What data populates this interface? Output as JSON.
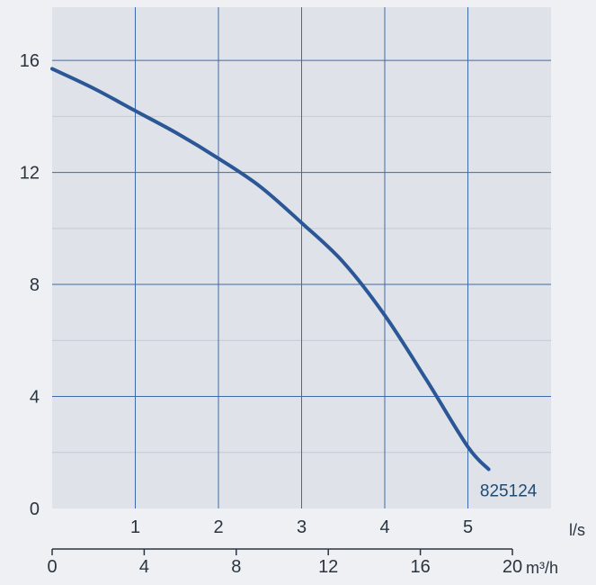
{
  "chart_data": {
    "type": "line",
    "title": "",
    "xlabel": "l/s",
    "ylabel": "",
    "x_unit_label": "l/s",
    "x2_unit_label": "m³/h",
    "xlim": [
      0,
      6
    ],
    "ylim": [
      0,
      16
    ],
    "y_ticks": [
      "0",
      "4",
      "8",
      "12",
      "16"
    ],
    "x_ticks": [
      "1",
      "2",
      "3",
      "4",
      "5"
    ],
    "x2_ticks": [
      "0",
      "4",
      "8",
      "12",
      "16",
      "20"
    ],
    "grid": true,
    "series": [
      {
        "name": "825124",
        "color": "#2b5797",
        "x": [
          0,
          0.5,
          1,
          1.5,
          2,
          2.5,
          3,
          3.5,
          4,
          4.5,
          5,
          5.25
        ],
        "y": [
          15.7,
          15.0,
          14.2,
          13.4,
          12.5,
          11.5,
          10.2,
          8.8,
          6.9,
          4.6,
          2.2,
          1.4
        ]
      }
    ],
    "colors": {
      "plot_background": "#dfe3e9",
      "gridline": "#3d6aa8",
      "minor_gridline": "#c4cad3",
      "axis": "#2a3440"
    }
  }
}
